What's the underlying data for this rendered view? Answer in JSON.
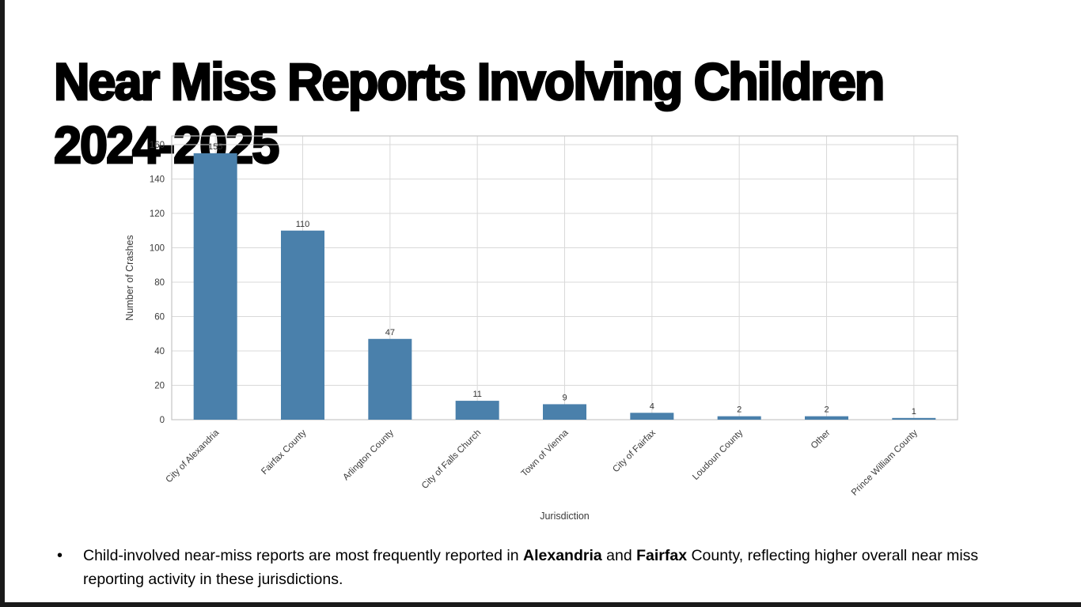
{
  "slide": {
    "title_line1": "Near Miss Reports Involving Children",
    "title_line2": "2024-2025",
    "bullet": {
      "marker": "•",
      "part1": "Child-involved near-miss reports are most frequently reported in ",
      "bold1": "Alexandria",
      "part2": " and ",
      "bold2": "Fairfax",
      "part3": " County, reflecting higher overall near miss reporting activity in these jurisdictions."
    }
  },
  "chart_data": {
    "type": "bar",
    "title": "",
    "categories": [
      "City of Alexandria",
      "Fairfax County",
      "Arlington County",
      "City of Falls Church",
      "Town of Vienna",
      "City of Fairfax",
      "Loudoun County",
      "Other",
      "Prince William County"
    ],
    "values": [
      155,
      110,
      47,
      11,
      9,
      4,
      2,
      2,
      1
    ],
    "xlabel": "Jurisdiction",
    "ylabel": "Number of Crashes",
    "ylim": [
      0,
      160
    ],
    "yticks": [
      0,
      20,
      40,
      60,
      80,
      100,
      120,
      140,
      160
    ],
    "grid": true,
    "legend": "none",
    "bar_color": "#4a80ab",
    "grid_color": "#d9d9d9",
    "spine_color": "#c6c6c6",
    "tick_label_color": "#3a3a3a",
    "value_label_color": "#333333",
    "value_labels": true
  },
  "colors": {
    "background": "#ffffff",
    "edge_bars": "#1a1a1a",
    "title_text": "#000000"
  }
}
